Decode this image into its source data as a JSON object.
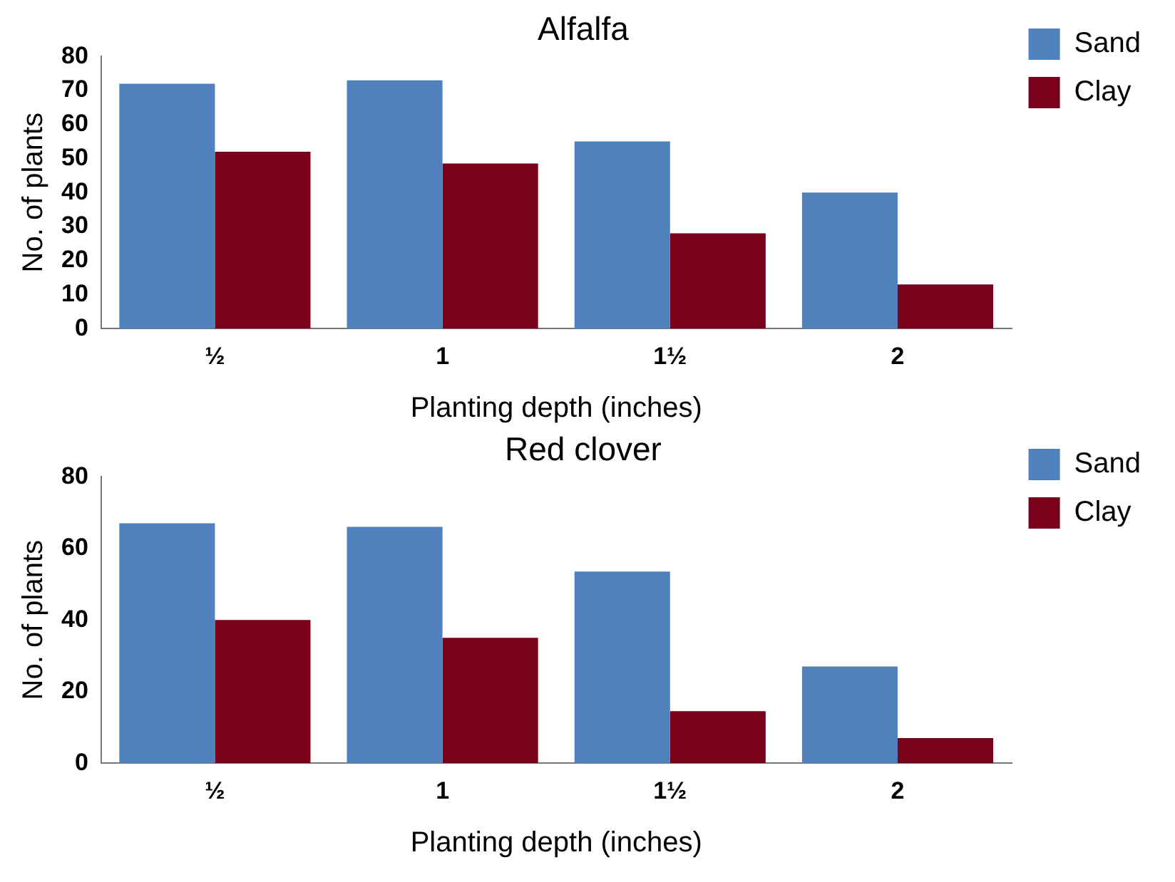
{
  "chart_data": [
    {
      "type": "bar",
      "title": "Alfalfa",
      "xlabel": "Planting depth (inches)",
      "ylabel": "No. of plants",
      "categories": [
        "½",
        "1",
        "1½",
        "2"
      ],
      "series": [
        {
          "name": "Sand",
          "color": "#4f81bd",
          "values": [
            72,
            73,
            55,
            40
          ]
        },
        {
          "name": "Clay",
          "color": "#7b001a",
          "values": [
            52,
            48.5,
            28,
            13
          ]
        }
      ],
      "ylim": [
        0,
        80
      ],
      "yticks": [
        0,
        10,
        20,
        30,
        40,
        50,
        60,
        70,
        80
      ],
      "grid": false,
      "legend": "top right"
    },
    {
      "type": "bar",
      "title": "Red clover",
      "xlabel": "Planting depth (inches)",
      "ylabel": "No. of plants",
      "categories": [
        "½",
        "1",
        "1½",
        "2"
      ],
      "series": [
        {
          "name": "Sand",
          "color": "#4f81bd",
          "values": [
            67,
            66,
            53.5,
            27
          ]
        },
        {
          "name": "Clay",
          "color": "#7b001a",
          "values": [
            40,
            35,
            14.5,
            7
          ]
        }
      ],
      "ylim": [
        0,
        80
      ],
      "yticks": [
        0,
        20,
        40,
        60,
        80
      ],
      "grid": false,
      "legend": "top right"
    }
  ]
}
